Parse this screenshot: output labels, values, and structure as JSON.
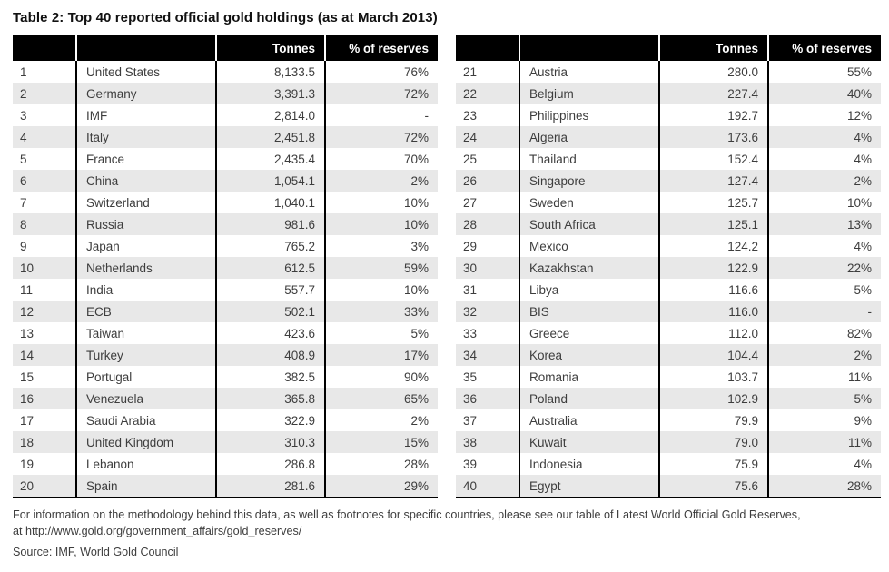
{
  "title": "Table 2: Top 40 reported official gold holdings (as at March 2013)",
  "columns": [
    "",
    "",
    "Tonnes",
    "% of reserves"
  ],
  "tables": [
    {
      "rows": [
        [
          "1",
          "United States",
          "8,133.5",
          "76%"
        ],
        [
          "2",
          "Germany",
          "3,391.3",
          "72%"
        ],
        [
          "3",
          "IMF",
          "2,814.0",
          "-"
        ],
        [
          "4",
          "Italy",
          "2,451.8",
          "72%"
        ],
        [
          "5",
          "France",
          "2,435.4",
          "70%"
        ],
        [
          "6",
          "China",
          "1,054.1",
          "2%"
        ],
        [
          "7",
          "Switzerland",
          "1,040.1",
          "10%"
        ],
        [
          "8",
          "Russia",
          "981.6",
          "10%"
        ],
        [
          "9",
          "Japan",
          "765.2",
          "3%"
        ],
        [
          "10",
          "Netherlands",
          "612.5",
          "59%"
        ],
        [
          "11",
          "India",
          "557.7",
          "10%"
        ],
        [
          "12",
          "ECB",
          "502.1",
          "33%"
        ],
        [
          "13",
          "Taiwan",
          "423.6",
          "5%"
        ],
        [
          "14",
          "Turkey",
          "408.9",
          "17%"
        ],
        [
          "15",
          "Portugal",
          "382.5",
          "90%"
        ],
        [
          "16",
          "Venezuela",
          "365.8",
          "65%"
        ],
        [
          "17",
          "Saudi Arabia",
          "322.9",
          "2%"
        ],
        [
          "18",
          "United Kingdom",
          "310.3",
          "15%"
        ],
        [
          "19",
          "Lebanon",
          "286.8",
          "28%"
        ],
        [
          "20",
          "Spain",
          "281.6",
          "29%"
        ]
      ]
    },
    {
      "rows": [
        [
          "21",
          "Austria",
          "280.0",
          "55%"
        ],
        [
          "22",
          "Belgium",
          "227.4",
          "40%"
        ],
        [
          "23",
          "Philippines",
          "192.7",
          "12%"
        ],
        [
          "24",
          "Algeria",
          "173.6",
          "4%"
        ],
        [
          "25",
          "Thailand",
          "152.4",
          "4%"
        ],
        [
          "26",
          "Singapore",
          "127.4",
          "2%"
        ],
        [
          "27",
          "Sweden",
          "125.7",
          "10%"
        ],
        [
          "28",
          "South Africa",
          "125.1",
          "13%"
        ],
        [
          "29",
          "Mexico",
          "124.2",
          "4%"
        ],
        [
          "30",
          "Kazakhstan",
          "122.9",
          "22%"
        ],
        [
          "31",
          "Libya",
          "116.6",
          "5%"
        ],
        [
          "32",
          "BIS",
          "116.0",
          "-"
        ],
        [
          "33",
          "Greece",
          "112.0",
          "82%"
        ],
        [
          "34",
          "Korea",
          "104.4",
          "2%"
        ],
        [
          "35",
          "Romania",
          "103.7",
          "11%"
        ],
        [
          "36",
          "Poland",
          "102.9",
          "5%"
        ],
        [
          "37",
          "Australia",
          "79.9",
          "9%"
        ],
        [
          "38",
          "Kuwait",
          "79.0",
          "11%"
        ],
        [
          "39",
          "Indonesia",
          "75.9",
          "4%"
        ],
        [
          "40",
          "Egypt",
          "75.6",
          "28%"
        ]
      ]
    }
  ],
  "footnote": {
    "line1": "For information on the methodology behind this data, as well as footnotes for specific countries, please see our table of Latest World Official Gold Reserves,",
    "line2": "at http://www.gold.org/government_affairs/gold_reserves/"
  },
  "source": "Source: IMF, World Gold Council",
  "colors": {
    "header_bg": "#000000",
    "header_text": "#ffffff",
    "row_alt": "#e8e8e8",
    "body_text": "#3d3d3d"
  }
}
